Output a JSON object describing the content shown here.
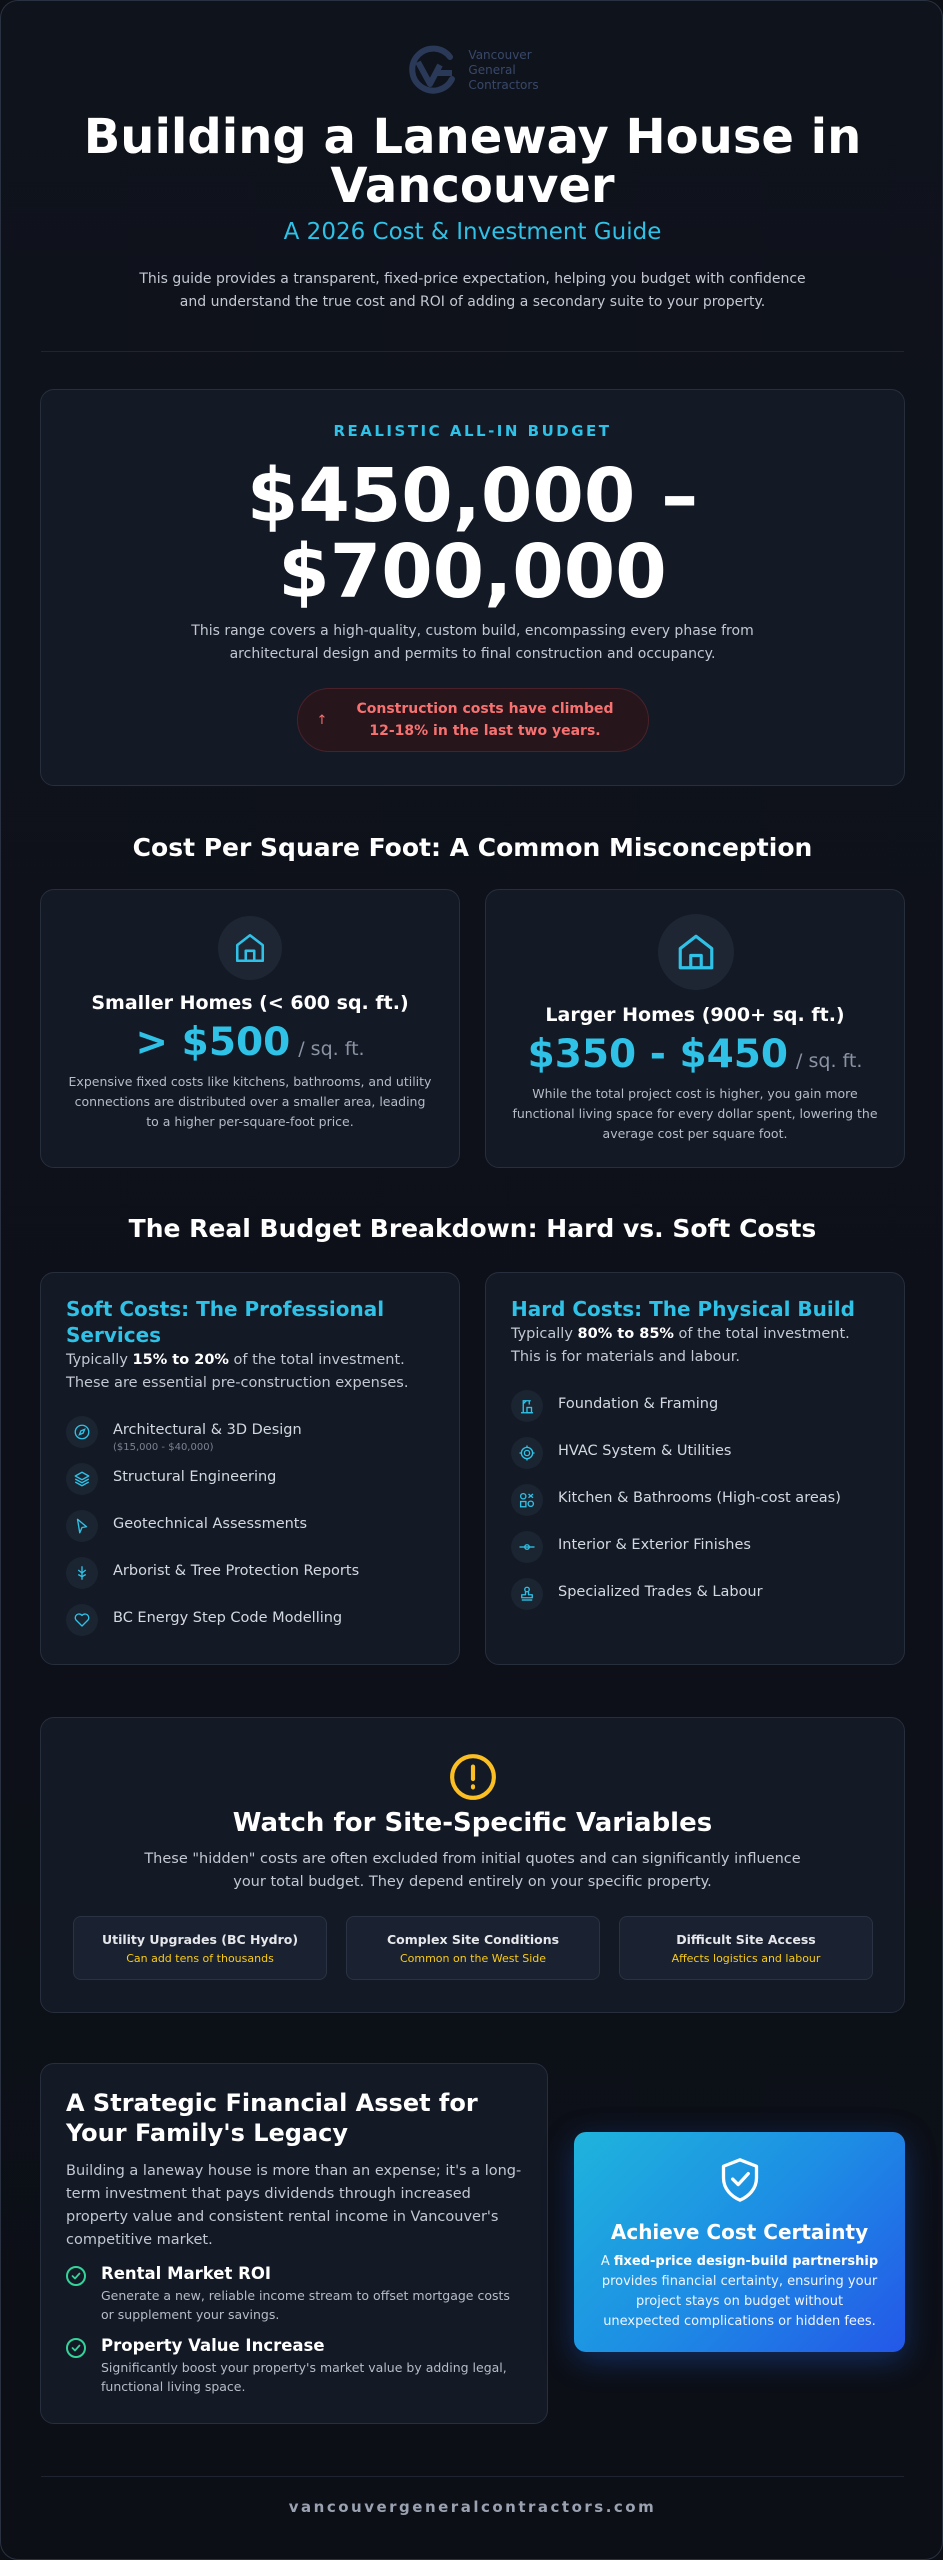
{
  "logo": {
    "line1": "Vancouver",
    "line2": "General",
    "line3": "Contractors",
    "icon": "vgc-logo-mark"
  },
  "header": {
    "title": "Building a Laneway House in Vancouver",
    "subtitle": "A 2026 Cost & Investment Guide",
    "intro": "This guide provides a transparent, fixed-price expectation, helping you budget with confidence and understand the true cost and ROI of adding a secondary suite to your property."
  },
  "budget": {
    "label": "REALISTIC ALL-IN BUDGET",
    "range": "$450,000 – $700,000",
    "description": "This range covers a high-quality, custom build, encompassing every phase from architectural design and permits to final construction and occupancy.",
    "alert": "Construction costs have climbed 12-18% in the last two years.",
    "alert_icon": "arrow-up-icon"
  },
  "sqft": {
    "title": "Cost Per Square Foot: A Common Misconception",
    "small": {
      "title": "Smaller Homes (< 600 sq. ft.)",
      "price": "> $500",
      "unit": "/ sq. ft.",
      "description": "Expensive fixed costs like kitchens, bathrooms, and utility connections are distributed over a smaller area, leading to a higher per-square-foot price."
    },
    "large": {
      "title": "Larger Homes (900+ sq. ft.)",
      "price": "$350 - $450",
      "unit": "/ sq. ft.",
      "description": "While the total project cost is higher, you gain more functional living space for every dollar spent, lowering the average cost per square foot."
    }
  },
  "breakdown": {
    "title": "The Real Budget Breakdown: Hard vs. Soft Costs",
    "soft": {
      "heading": "Soft Costs: The Professional Services",
      "desc_prefix": "Typically ",
      "desc_bold": "15% to 20%",
      "desc_suffix": " of the total investment. These are essential pre-construction expenses.",
      "items": [
        {
          "label": "Architectural & 3D Design",
          "sub": "($15,000 - $40,000)",
          "icon": "compass-icon"
        },
        {
          "label": "Structural Engineering",
          "sub": "",
          "icon": "layers-icon"
        },
        {
          "label": "Geotechnical Assessments",
          "sub": "",
          "icon": "cursor-icon"
        },
        {
          "label": "Arborist & Tree Protection Reports",
          "sub": "",
          "icon": "tree-icon"
        },
        {
          "label": "BC Energy Step Code Modelling",
          "sub": "",
          "icon": "heart-icon"
        }
      ]
    },
    "hard": {
      "heading": "Hard Costs: The Physical Build",
      "desc_prefix": "Typically ",
      "desc_bold": "80% to 85%",
      "desc_suffix": " of the total investment. This is for materials and labour.",
      "items": [
        {
          "label": "Foundation & Framing",
          "icon": "crane-icon"
        },
        {
          "label": "HVAC System & Utilities",
          "icon": "cog-icon"
        },
        {
          "label": "Kitchen & Bathrooms (High-cost areas)",
          "icon": "shapes-icon"
        },
        {
          "label": "Interior & Exterior Finishes",
          "icon": "level-icon"
        },
        {
          "label": "Specialized Trades & Labour",
          "icon": "stamp-icon"
        }
      ]
    }
  },
  "site": {
    "icon": "alert-circle-icon",
    "title": "Watch for Site-Specific Variables",
    "description": "These \"hidden\" costs are often excluded from initial quotes and can significantly influence your total budget. They depend entirely on your specific property.",
    "variables": [
      {
        "title": "Utility Upgrades (BC Hydro)",
        "note": "Can add tens of thousands"
      },
      {
        "title": "Complex Site Conditions",
        "note": "Common on the West Side"
      },
      {
        "title": "Difficult Site Access",
        "note": "Affects logistics and labour"
      }
    ]
  },
  "strategy": {
    "heading": "A Strategic Financial Asset for Your Family's Legacy",
    "description": "Building a laneway house is more than an expense; it's a long-term investment that pays dividends through increased property value and consistent rental income in Vancouver's competitive market.",
    "benefits": [
      {
        "title": "Rental Market ROI",
        "description": "Generate a new, reliable income stream to offset mortgage costs or supplement your savings."
      },
      {
        "title": "Property Value Increase",
        "description": "Significantly boost your property's market value by adding legal, functional living space."
      }
    ]
  },
  "certainty": {
    "icon": "shield-check-icon",
    "title": "Achieve Cost Certainty",
    "desc_prefix": "A ",
    "desc_bold": "fixed-price design-build partnership",
    "desc_suffix": " provides financial certainty, ensuring your project stays on budget without unexpected complications or hidden fees."
  },
  "footer": {
    "url": "vancouvergeneralcontractors.com"
  },
  "colors": {
    "accent": "#2fc1e6",
    "warning": "#fbbf24",
    "alert": "#f87171",
    "success": "#34d399"
  }
}
